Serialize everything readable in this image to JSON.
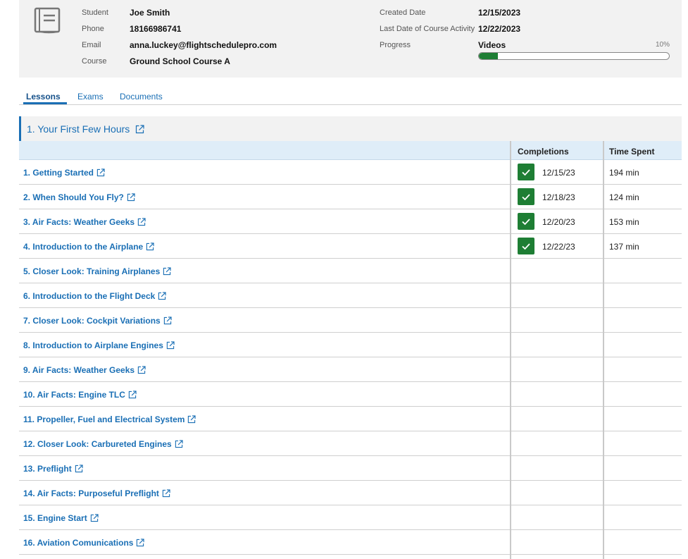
{
  "student": {
    "labels": {
      "student": "Student",
      "phone": "Phone",
      "email": "Email",
      "course": "Course",
      "created_date": "Created Date",
      "last_activity": "Last Date of Course Activity",
      "progress": "Progress"
    },
    "name": "Joe Smith",
    "phone": "18166986741",
    "email": "anna.luckey@flightschedulepro.com",
    "course": "Ground School Course A",
    "created_date": "12/15/2023",
    "last_activity": "12/22/2023",
    "progress_type": "Videos",
    "progress_percent": "10%",
    "progress_value": 0.1
  },
  "tabs": [
    {
      "label": "Lessons",
      "active": true
    },
    {
      "label": "Exams",
      "active": false
    },
    {
      "label": "Documents",
      "active": false
    }
  ],
  "section": {
    "title": "1. Your First Few Hours"
  },
  "table": {
    "columns": {
      "completions": "Completions",
      "time_spent": "Time Spent"
    },
    "rows": [
      {
        "title": "1. Getting Started",
        "completed": true,
        "date": "12/15/23",
        "time": "194 min"
      },
      {
        "title": "2. When Should You Fly?",
        "completed": true,
        "date": "12/18/23",
        "time": "124 min"
      },
      {
        "title": "3. Air Facts: Weather Geeks",
        "completed": true,
        "date": "12/20/23",
        "time": "153 min"
      },
      {
        "title": "4. Introduction to the Airplane",
        "completed": true,
        "date": "12/22/23",
        "time": "137 min"
      },
      {
        "title": "5. Closer Look: Training Airplanes",
        "completed": false,
        "date": "",
        "time": ""
      },
      {
        "title": "6. Introduction to the Flight Deck",
        "completed": false,
        "date": "",
        "time": ""
      },
      {
        "title": "7. Closer Look: Cockpit Variations",
        "completed": false,
        "date": "",
        "time": ""
      },
      {
        "title": "8. Introduction to Airplane Engines",
        "completed": false,
        "date": "",
        "time": ""
      },
      {
        "title": "9. Air Facts: Weather Geeks",
        "completed": false,
        "date": "",
        "time": ""
      },
      {
        "title": "10. Air Facts: Engine TLC",
        "completed": false,
        "date": "",
        "time": ""
      },
      {
        "title": "11. Propeller, Fuel and Electrical System",
        "completed": false,
        "date": "",
        "time": ""
      },
      {
        "title": "12. Closer Look: Carbureted Engines",
        "completed": false,
        "date": "",
        "time": ""
      },
      {
        "title": "13. Preflight",
        "completed": false,
        "date": "",
        "time": ""
      },
      {
        "title": "14. Air Facts: Purposeful Preflight",
        "completed": false,
        "date": "",
        "time": ""
      },
      {
        "title": "15. Engine Start",
        "completed": false,
        "date": "",
        "time": ""
      },
      {
        "title": "16. Aviation Comunications",
        "completed": false,
        "date": "",
        "time": ""
      }
    ]
  },
  "icons": {
    "header": "book-icon",
    "link": "external-link-icon",
    "check": "checkmark-icon"
  },
  "colors": {
    "link": "#1a6fb5",
    "success": "#1e7e34",
    "header_bg": "#f2f2f2",
    "table_header_bg": "#dfedf8"
  }
}
